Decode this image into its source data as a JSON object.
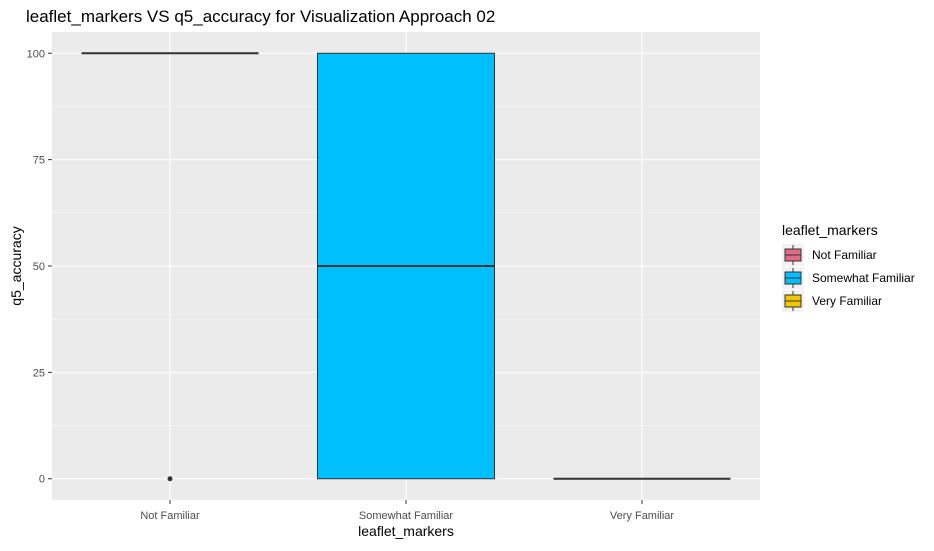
{
  "chart_data": {
    "type": "box",
    "title": "leaflet_markers VS q5_accuracy for Visualization Approach 02",
    "xlabel": "leaflet_markers",
    "ylabel": "q5_accuracy",
    "ylim": [
      -5,
      105
    ],
    "yticks": [
      0,
      25,
      50,
      75,
      100
    ],
    "grid": true,
    "categories": [
      "Not Familiar",
      "Somewhat Familiar",
      "Very Familiar"
    ],
    "boxes": [
      {
        "category": "Not Familiar",
        "lower_whisker": 100,
        "q1": 100,
        "median": 100,
        "q3": 100,
        "upper_whisker": 100,
        "outliers": [
          0
        ]
      },
      {
        "category": "Somewhat Familiar",
        "lower_whisker": 0,
        "q1": 0,
        "median": 50,
        "q3": 100,
        "upper_whisker": 100,
        "outliers": []
      },
      {
        "category": "Very Familiar",
        "lower_whisker": 0,
        "q1": 0,
        "median": 0,
        "q3": 0,
        "upper_whisker": 0,
        "outliers": []
      }
    ],
    "colors": {
      "Not Familiar": "#E16A86",
      "Somewhat Familiar": "#00BFFF",
      "Very Familiar": "#F0C800"
    },
    "legend": {
      "title": "leaflet_markers",
      "position": "right",
      "entries": [
        "Not Familiar",
        "Somewhat Familiar",
        "Very Familiar"
      ]
    }
  }
}
